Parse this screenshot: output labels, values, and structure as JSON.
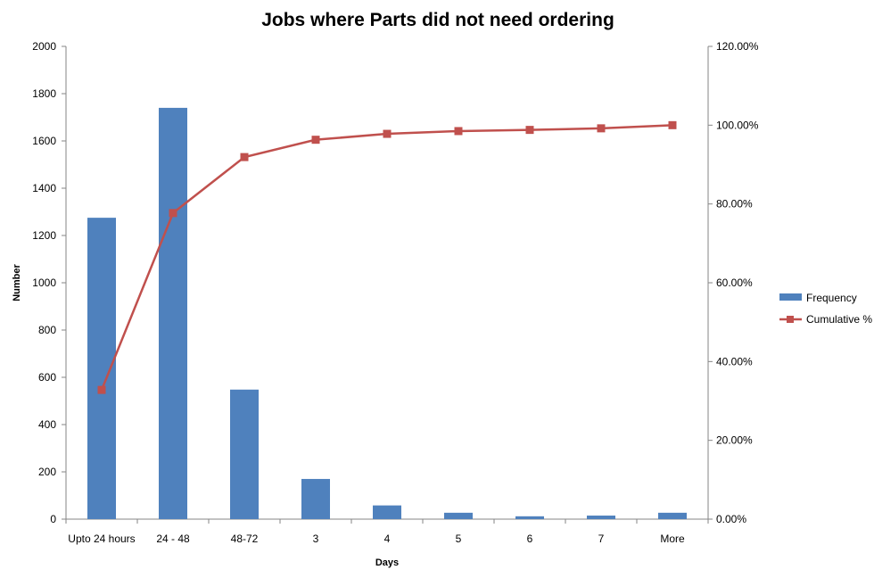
{
  "chart_data": {
    "type": "bar",
    "title": "Jobs where Parts did not need ordering",
    "xlabel": "Days",
    "ylabel": "Number",
    "categories": [
      "Upto 24 hours",
      "24 - 48",
      "48-72",
      "3",
      "4",
      "5",
      "6",
      "7",
      "More"
    ],
    "ylim": [
      0,
      2000
    ],
    "y_ticks": [
      "0",
      "200",
      "400",
      "600",
      "800",
      "1000",
      "1200",
      "1400",
      "1600",
      "1800",
      "2000"
    ],
    "y2lim": [
      0,
      120
    ],
    "y2_ticks": [
      "0.00%",
      "20.00%",
      "40.00%",
      "60.00%",
      "80.00%",
      "100.00%",
      "120.00%"
    ],
    "series": [
      {
        "name": "Frequency",
        "type": "bar",
        "axis": "left",
        "color": "#4F81BD",
        "values": [
          1275,
          1740,
          548,
          170,
          58,
          27,
          12,
          15,
          27
        ]
      },
      {
        "name": "Cumulative %",
        "type": "line",
        "axis": "right",
        "color": "#C0504D",
        "marker": "square",
        "values": [
          32.8,
          77.7,
          91.9,
          96.3,
          97.8,
          98.5,
          98.8,
          99.2,
          100
        ]
      }
    ],
    "grid": false,
    "legend_position": "right"
  }
}
